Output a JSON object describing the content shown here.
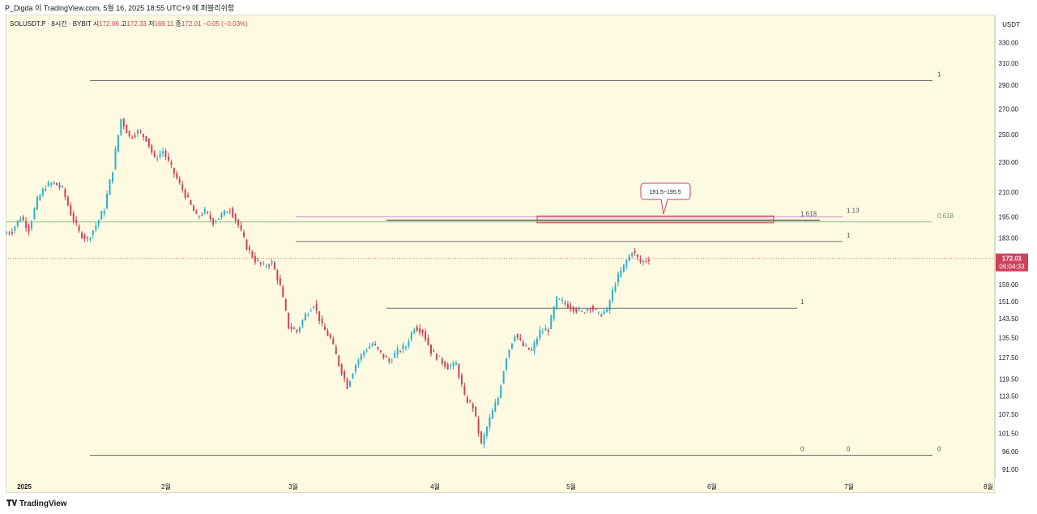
{
  "header": {
    "publisher_line": "P_Digda 이 TradingView.com, 5월 16, 2025 18:55 UTC+9 에 퍼블리쉬함"
  },
  "legend": {
    "symbol": "SOLUSDT.P · 8시간 · BYBIT",
    "open_label": "시",
    "open": "172.06",
    "high_label": "고",
    "high": "172.33",
    "low_label": "저",
    "low": "169.11",
    "close_label": "종",
    "close": "172.01",
    "change": "−0.05 (−0.03%)"
  },
  "footer": {
    "brand": "TradingView"
  },
  "colors": {
    "background": "#fefae2",
    "up_candle": "#2ab0c9",
    "down_candle": "#d1405b",
    "fib_line": "#6b6b6b",
    "green_line": "#8fc28a",
    "purple_line": "#c48fd0",
    "zone_border": "#d1405b"
  },
  "chart_data": {
    "type": "candlestick",
    "currency_label": "USDT",
    "y_ticks": [
      "330.00",
      "310.00",
      "290.00",
      "270.00",
      "250.00",
      "230.00",
      "210.00",
      "195.00",
      "183.00",
      "172.01",
      "159.00",
      "151.00",
      "143.50",
      "135.50",
      "127.50",
      "119.50",
      "113.50",
      "107.50",
      "101.50",
      "96.00",
      "91.00"
    ],
    "last_price": "172.01",
    "countdown": "06:04:33",
    "x_ticks": [
      "2025",
      "2월",
      "3월",
      "4월",
      "5월",
      "6월",
      "7월",
      "8월"
    ],
    "close_series": [
      187,
      195,
      188,
      205,
      214,
      216,
      212,
      197,
      186,
      182,
      190,
      200,
      225,
      262,
      248,
      252,
      247,
      232,
      238,
      226,
      215,
      205,
      195,
      198,
      192,
      196,
      200,
      190,
      178,
      171,
      168,
      170,
      158,
      140,
      138,
      145,
      150,
      140,
      135,
      125,
      117,
      125,
      130,
      133,
      129,
      126,
      130,
      132,
      140,
      138,
      130,
      127,
      124,
      125,
      113,
      110,
      98,
      106,
      113,
      128,
      137,
      132,
      130,
      138,
      139,
      152,
      150,
      148,
      146,
      149,
      145,
      147,
      160,
      168,
      176,
      170,
      172
    ],
    "candle_dates": {
      "start": "2025-01-01",
      "interval": "8h"
    },
    "fib_levels": [
      {
        "label": "1",
        "value": 294
      },
      {
        "label": "0.618",
        "value": 192
      },
      {
        "label": "1.618",
        "value": 193
      },
      {
        "label": "1.13",
        "value": 195
      },
      {
        "label": "1",
        "value": 181
      },
      {
        "label": "1",
        "value": 148
      },
      {
        "label": "0",
        "value": 95
      },
      {
        "label": "0",
        "value": 95
      },
      {
        "label": "0",
        "value": 95
      }
    ],
    "zone": {
      "label": "191.5~195.5",
      "low": 191.5,
      "high": 195.5
    }
  }
}
